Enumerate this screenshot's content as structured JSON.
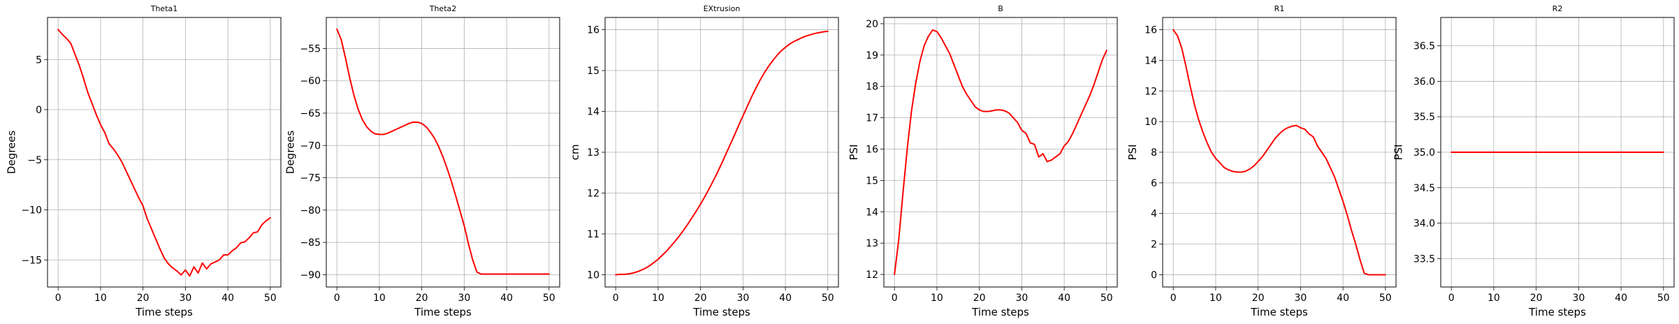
{
  "chart_data": [
    {
      "type": "line",
      "title": "Theta1",
      "xlabel": "Time steps",
      "ylabel": "Degrees",
      "xlim": [
        -2.5,
        52.5
      ],
      "ylim": [
        -17.7,
        9.2
      ],
      "xticks": [
        0,
        10,
        20,
        30,
        40,
        50
      ],
      "yticks": [
        -15,
        -10,
        -5,
        0,
        5
      ],
      "ytick_labels": [
        "−15",
        "−10",
        "−5",
        "0",
        "5"
      ],
      "grid": true,
      "color": "#ff0000",
      "series": [
        {
          "x": [
            0,
            1,
            2,
            3,
            4,
            5,
            6,
            7,
            8,
            9,
            10,
            11,
            12,
            13,
            14,
            15,
            16,
            17,
            18,
            19,
            20,
            21,
            22,
            23,
            24,
            25,
            26,
            27,
            28,
            29,
            30,
            31,
            32,
            33,
            34,
            35,
            36,
            37,
            38,
            39,
            40,
            41,
            42,
            43,
            44,
            45,
            46,
            47,
            48,
            49,
            50
          ],
          "values": [
            8.0,
            7.5,
            7.1,
            6.6,
            5.5,
            4.4,
            3.1,
            1.7,
            0.6,
            -0.5,
            -1.5,
            -2.3,
            -3.4,
            -3.9,
            -4.5,
            -5.2,
            -6.1,
            -7.0,
            -7.9,
            -8.8,
            -9.6,
            -10.9,
            -11.9,
            -12.9,
            -13.9,
            -14.8,
            -15.4,
            -15.8,
            -16.1,
            -16.5,
            -16.0,
            -16.6,
            -15.7,
            -16.3,
            -15.3,
            -15.9,
            -15.4,
            -15.2,
            -15.0,
            -14.5,
            -14.5,
            -14.1,
            -13.8,
            -13.3,
            -13.2,
            -12.8,
            -12.3,
            -12.2,
            -11.5,
            -11.1,
            -10.8
          ]
        }
      ]
    },
    {
      "type": "line",
      "title": "Theta2",
      "xlabel": "Time steps",
      "ylabel": "Degrees",
      "xlim": [
        -2.5,
        52.5
      ],
      "ylim": [
        -91.9,
        -50.2
      ],
      "xticks": [
        0,
        10,
        20,
        30,
        40,
        50
      ],
      "yticks": [
        -90,
        -85,
        -80,
        -75,
        -70,
        -65,
        -60,
        -55
      ],
      "ytick_labels": [
        "−90",
        "−85",
        "−80",
        "−75",
        "−70",
        "−65",
        "−60",
        "−55"
      ],
      "grid": true,
      "color": "#ff0000",
      "series": [
        {
          "x": [
            0,
            1,
            2,
            3,
            4,
            5,
            6,
            7,
            8,
            9,
            10,
            11,
            12,
            13,
            14,
            15,
            16,
            17,
            18,
            19,
            20,
            21,
            22,
            23,
            24,
            25,
            26,
            27,
            28,
            29,
            30,
            31,
            32,
            33,
            34,
            35,
            36,
            37,
            38,
            39,
            40,
            41,
            42,
            43,
            44,
            45,
            46,
            47,
            48,
            49,
            50
          ],
          "values": [
            -52.0,
            -53.6,
            -56.4,
            -59.5,
            -62.2,
            -64.4,
            -66.0,
            -67.1,
            -67.8,
            -68.2,
            -68.3,
            -68.3,
            -68.1,
            -67.8,
            -67.5,
            -67.2,
            -66.9,
            -66.6,
            -66.4,
            -66.4,
            -66.6,
            -67.1,
            -67.9,
            -68.9,
            -70.2,
            -71.8,
            -73.6,
            -75.6,
            -77.8,
            -80.1,
            -82.4,
            -85.2,
            -87.7,
            -89.6,
            -89.9,
            -89.9,
            -89.9,
            -89.9,
            -89.9,
            -89.9,
            -89.9,
            -89.9,
            -89.9,
            -89.9,
            -89.9,
            -89.9,
            -89.9,
            -89.9,
            -89.9,
            -89.9,
            -89.9
          ]
        }
      ]
    },
    {
      "type": "line",
      "title": "EXtrusion",
      "xlabel": "Time steps",
      "ylabel": "cm",
      "xlim": [
        -2.5,
        52.5
      ],
      "ylim": [
        9.7,
        16.3
      ],
      "xticks": [
        0,
        10,
        20,
        30,
        40,
        50
      ],
      "yticks": [
        10,
        11,
        12,
        13,
        14,
        15,
        16
      ],
      "ytick_labels": [
        "10",
        "11",
        "12",
        "13",
        "14",
        "15",
        "16"
      ],
      "grid": true,
      "color": "#ff0000",
      "series": [
        {
          "x": [
            0,
            1,
            2,
            3,
            4,
            5,
            6,
            7,
            8,
            9,
            10,
            11,
            12,
            13,
            14,
            15,
            16,
            17,
            18,
            19,
            20,
            21,
            22,
            23,
            24,
            25,
            26,
            27,
            28,
            29,
            30,
            31,
            32,
            33,
            34,
            35,
            36,
            37,
            38,
            39,
            40,
            41,
            42,
            43,
            44,
            45,
            46,
            47,
            48,
            49,
            50
          ],
          "values": [
            10.0,
            10.01,
            10.01,
            10.02,
            10.04,
            10.07,
            10.11,
            10.16,
            10.22,
            10.3,
            10.38,
            10.48,
            10.58,
            10.7,
            10.82,
            10.95,
            11.09,
            11.24,
            11.4,
            11.56,
            11.73,
            11.91,
            12.1,
            12.3,
            12.51,
            12.73,
            12.96,
            13.19,
            13.42,
            13.66,
            13.89,
            14.12,
            14.35,
            14.56,
            14.76,
            14.94,
            15.1,
            15.24,
            15.37,
            15.48,
            15.57,
            15.65,
            15.71,
            15.76,
            15.81,
            15.85,
            15.88,
            15.91,
            15.93,
            15.95,
            15.96
          ]
        }
      ]
    },
    {
      "type": "line",
      "title": "B",
      "xlabel": "Time steps",
      "ylabel": "PSI",
      "xlim": [
        -2.5,
        52.5
      ],
      "ylim": [
        11.6,
        20.2
      ],
      "xticks": [
        0,
        10,
        20,
        30,
        40,
        50
      ],
      "yticks": [
        12,
        13,
        14,
        15,
        16,
        17,
        18,
        19,
        20
      ],
      "ytick_labels": [
        "12",
        "13",
        "14",
        "15",
        "16",
        "17",
        "18",
        "19",
        "20"
      ],
      "grid": true,
      "color": "#ff0000",
      "series": [
        {
          "x": [
            0,
            1,
            2,
            3,
            4,
            5,
            6,
            7,
            8,
            9,
            10,
            11,
            12,
            13,
            14,
            15,
            16,
            17,
            18,
            19,
            20,
            21,
            22,
            23,
            24,
            25,
            26,
            27,
            28,
            29,
            30,
            31,
            32,
            33,
            34,
            35,
            36,
            37,
            38,
            39,
            40,
            41,
            42,
            43,
            44,
            45,
            46,
            47,
            48,
            49,
            50
          ],
          "values": [
            12.0,
            13.1,
            14.6,
            16.0,
            17.2,
            18.1,
            18.8,
            19.3,
            19.6,
            19.8,
            19.75,
            19.55,
            19.3,
            19.05,
            18.7,
            18.35,
            18.0,
            17.75,
            17.55,
            17.35,
            17.25,
            17.2,
            17.2,
            17.22,
            17.25,
            17.25,
            17.22,
            17.15,
            17.0,
            16.85,
            16.6,
            16.5,
            16.2,
            16.15,
            15.75,
            15.85,
            15.6,
            15.65,
            15.75,
            15.85,
            16.1,
            16.25,
            16.5,
            16.8,
            17.1,
            17.4,
            17.7,
            18.05,
            18.45,
            18.85,
            19.15
          ]
        }
      ]
    },
    {
      "type": "line",
      "title": "R1",
      "xlabel": "Time steps",
      "ylabel": "PSI",
      "xlim": [
        -2.5,
        52.5
      ],
      "ylim": [
        -0.8,
        16.8
      ],
      "xticks": [
        0,
        10,
        20,
        30,
        40,
        50
      ],
      "yticks": [
        0,
        2,
        4,
        6,
        8,
        10,
        12,
        14,
        16
      ],
      "ytick_labels": [
        "0",
        "2",
        "4",
        "6",
        "8",
        "10",
        "12",
        "14",
        "16"
      ],
      "grid": true,
      "color": "#ff0000",
      "series": [
        {
          "x": [
            0,
            1,
            2,
            3,
            4,
            5,
            6,
            7,
            8,
            9,
            10,
            11,
            12,
            13,
            14,
            15,
            16,
            17,
            18,
            19,
            20,
            21,
            22,
            23,
            24,
            25,
            26,
            27,
            28,
            29,
            30,
            31,
            32,
            33,
            34,
            35,
            36,
            37,
            38,
            39,
            40,
            41,
            42,
            43,
            44,
            45,
            46,
            47,
            48,
            49,
            50
          ],
          "values": [
            16.0,
            15.6,
            14.8,
            13.6,
            12.3,
            11.1,
            10.1,
            9.3,
            8.6,
            8.0,
            7.6,
            7.3,
            7.0,
            6.85,
            6.75,
            6.7,
            6.7,
            6.75,
            6.9,
            7.1,
            7.4,
            7.7,
            8.1,
            8.5,
            8.9,
            9.2,
            9.45,
            9.6,
            9.7,
            9.75,
            9.6,
            9.5,
            9.2,
            9.0,
            8.4,
            8.0,
            7.6,
            7.0,
            6.4,
            5.6,
            4.8,
            3.9,
            2.9,
            2.0,
            1.0,
            0.1,
            0.0,
            0.0,
            0.0,
            0.0,
            0.0
          ]
        }
      ]
    },
    {
      "type": "line",
      "title": "R2",
      "xlabel": "Time steps",
      "ylabel": "PSI",
      "xlim": [
        -2.5,
        52.5
      ],
      "ylim": [
        33.1,
        36.9
      ],
      "xticks": [
        0,
        10,
        20,
        30,
        40,
        50
      ],
      "yticks": [
        33.5,
        34.0,
        34.5,
        35.0,
        35.5,
        36.0,
        36.5
      ],
      "ytick_labels": [
        "33.5",
        "34.0",
        "34.5",
        "35.0",
        "35.5",
        "36.0",
        "36.5"
      ],
      "grid": true,
      "color": "#ff0000",
      "series": [
        {
          "x": [
            0,
            50
          ],
          "values": [
            35.0,
            35.0
          ]
        }
      ]
    }
  ]
}
